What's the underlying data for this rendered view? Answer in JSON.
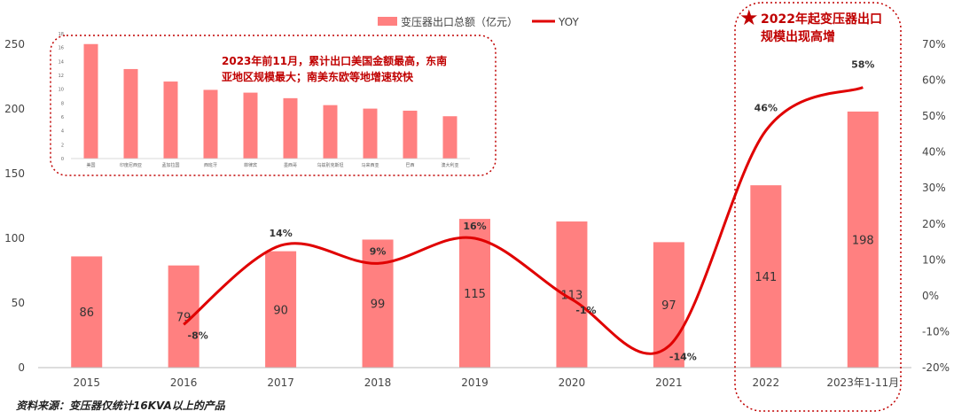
{
  "chart_data": [
    {
      "type": "bar+line",
      "categories": [
        "2015",
        "2016",
        "2017",
        "2018",
        "2019",
        "2020",
        "2021",
        "2022",
        "2023年1-11月"
      ],
      "series": [
        {
          "name": "变压器出口总额（亿元）",
          "type": "bar",
          "values": [
            86,
            79,
            90,
            99,
            115,
            113,
            97,
            141,
            198
          ]
        },
        {
          "name": "YOY",
          "type": "line",
          "values": [
            null,
            -8,
            14,
            9,
            16,
            -1,
            -14,
            46,
            58
          ]
        }
      ],
      "bar_labels": [
        "86",
        "79",
        "90",
        "99",
        "115",
        "113",
        "97",
        "141",
        "198"
      ],
      "yoy_labels": [
        "",
        "-8%",
        "14%",
        "9%",
        "16%",
        "-1%",
        "-14%",
        "46%",
        "58%"
      ],
      "ylim_left": [
        0,
        250
      ],
      "yticks_left": [
        "0",
        "50",
        "100",
        "150",
        "200",
        "250"
      ],
      "ylim_right": [
        -20,
        70
      ],
      "yticks_right": [
        "-20%",
        "-10%",
        "0%",
        "10%",
        "20%",
        "30%",
        "40%",
        "50%",
        "60%",
        "70%"
      ],
      "legend_position": "top"
    },
    {
      "type": "bar",
      "categories": [
        "美国",
        "印度尼西亚",
        "孟加拉国",
        "西班牙",
        "菲律宾",
        "墨西哥",
        "乌兹别克斯坦",
        "马来西亚",
        "巴西",
        "澳大利亚"
      ],
      "values": [
        16.5,
        12.9,
        11.1,
        9.9,
        9.5,
        8.7,
        7.7,
        7.2,
        6.9,
        6.1
      ],
      "ylim": [
        0,
        18
      ],
      "yticks": [
        "0",
        "2",
        "4",
        "6",
        "8",
        "10",
        "12",
        "14",
        "16",
        "18"
      ]
    }
  ],
  "notes": {
    "inset_note": "2023年前11月，累计出口美国金额最高，东南亚地区规模最大；南美东欧等地增速较快",
    "callout": "2022年起变压器出口规模出现高增",
    "source": "资料来源：变压器仅统计16KVA以上的产品"
  },
  "colors": {
    "bar": "#ff8080",
    "line": "#e00000",
    "accent": "#c00000"
  }
}
